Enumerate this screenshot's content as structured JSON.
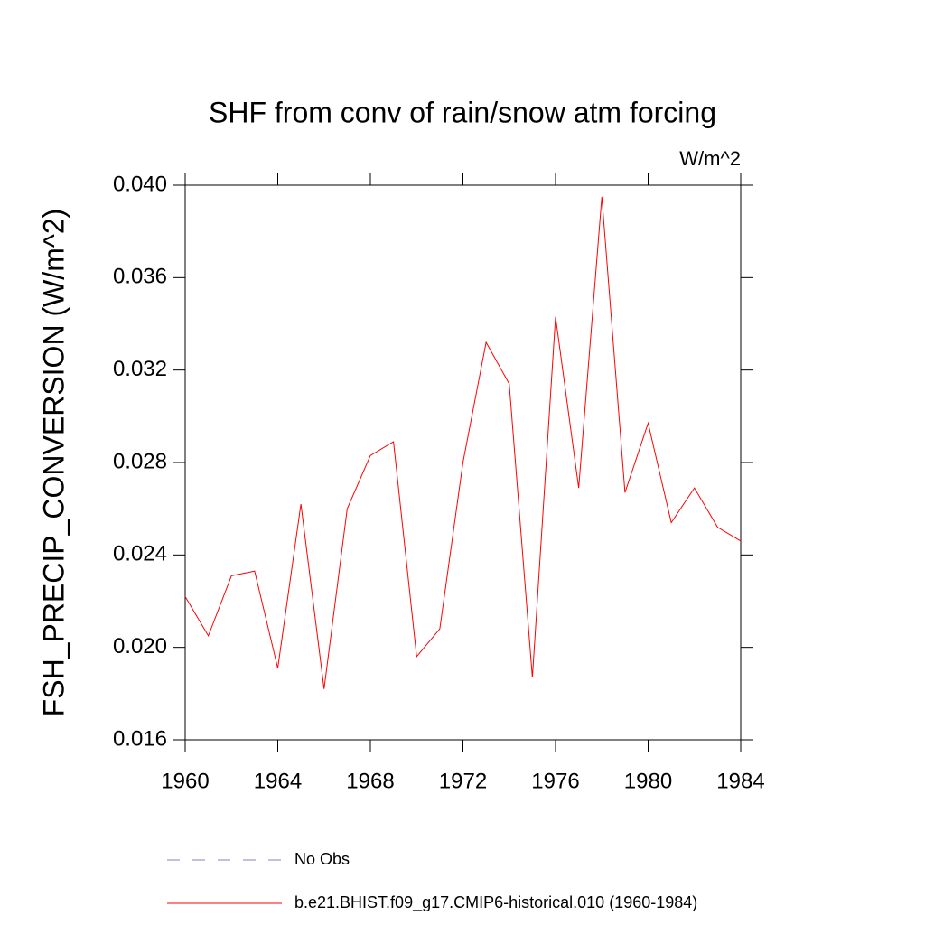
{
  "chart_data": {
    "type": "line",
    "title": "SHF from conv of rain/snow atm forcing",
    "units": "W/m^2",
    "ylabel": "FSH_PRECIP_CONVERSION  (W/m^2)",
    "x": [
      1960,
      1961,
      1962,
      1963,
      1964,
      1965,
      1966,
      1967,
      1968,
      1969,
      1970,
      1971,
      1972,
      1973,
      1974,
      1975,
      1976,
      1977,
      1978,
      1979,
      1980,
      1981,
      1982,
      1983,
      1984
    ],
    "series": [
      {
        "name": "No Obs",
        "color": "#8080c0",
        "dashed": true,
        "values": [
          null,
          null,
          null,
          null,
          null,
          null,
          null,
          null,
          null,
          null,
          null,
          null,
          null,
          null,
          null,
          null,
          null,
          null,
          null,
          null,
          null,
          null,
          null,
          null,
          null
        ]
      },
      {
        "name": "b.e21.BHIST.f09_g17.CMIP6-historical.010 (1960-1984)",
        "color": "#ff0000",
        "dashed": false,
        "values": [
          0.0222,
          0.0205,
          0.0231,
          0.0233,
          0.0191,
          0.0262,
          0.0182,
          0.026,
          0.0283,
          0.0289,
          0.0196,
          0.0208,
          0.028,
          0.0332,
          0.0314,
          0.0187,
          0.0343,
          0.0269,
          0.0395,
          0.0267,
          0.0297,
          0.0254,
          0.0269,
          0.0252,
          0.0246
        ]
      }
    ],
    "xlim": [
      1960,
      1984
    ],
    "xticks": [
      1960,
      1964,
      1968,
      1972,
      1976,
      1980,
      1984
    ],
    "ylim": [
      0.016,
      0.04
    ],
    "yticks": [
      0.016,
      {
        "value": 0.02,
        "label": "0.020"
      },
      0.024,
      0.028,
      0.032,
      0.036,
      {
        "value": 0.04,
        "label": "0.040"
      }
    ]
  }
}
